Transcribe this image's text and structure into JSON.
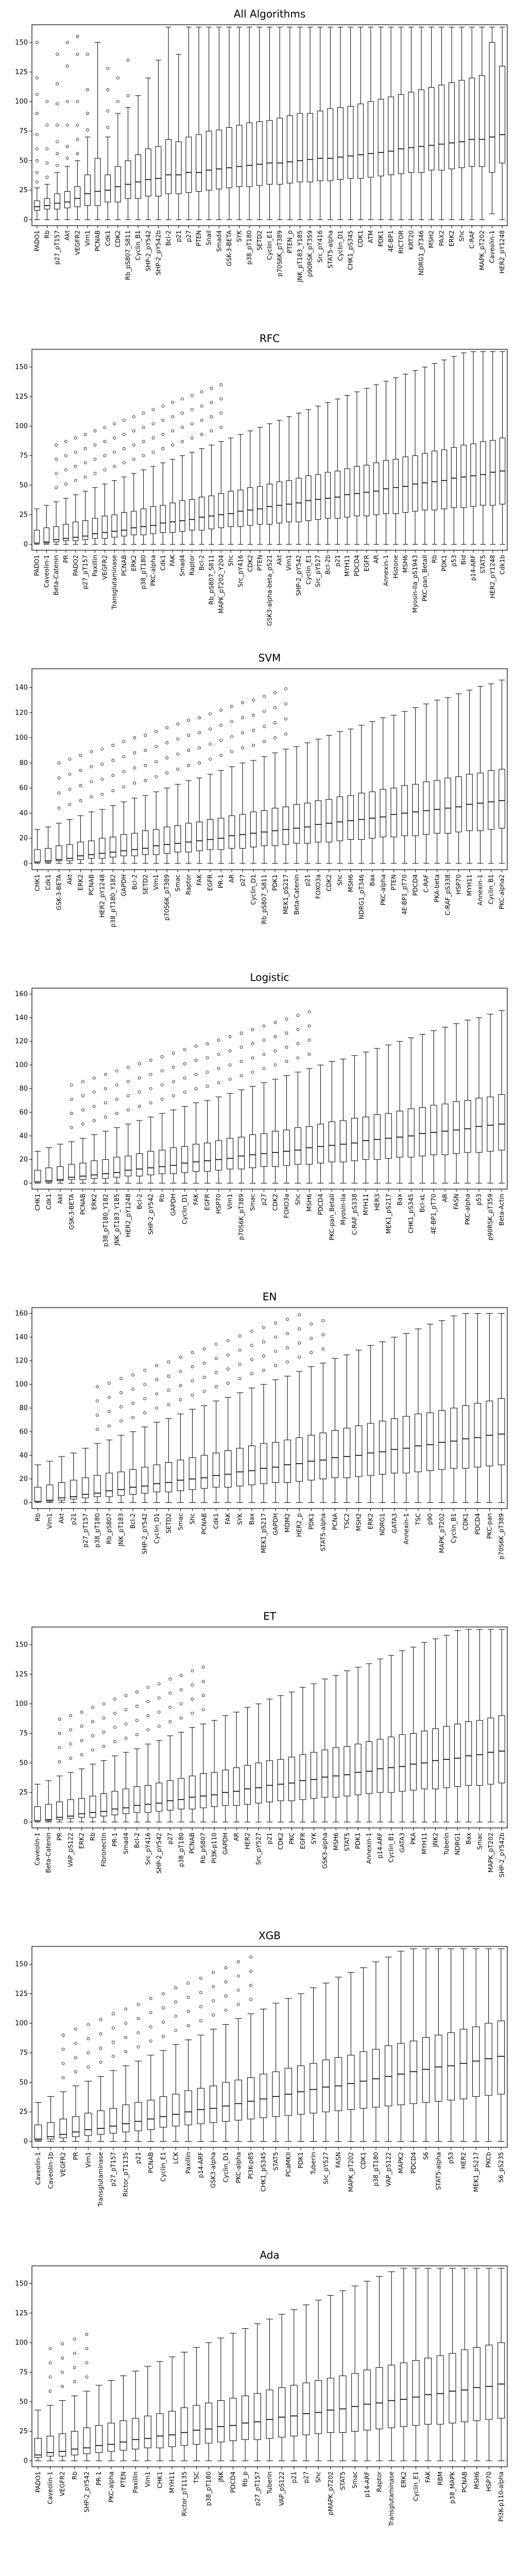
{
  "chart_data": [
    {
      "type": "box",
      "title": "All Algorithms",
      "ylim": [
        -5,
        165
      ],
      "yticks": [
        0,
        25,
        50,
        75,
        100,
        125,
        150
      ],
      "categories": [
        "PADO1",
        "Rb",
        "p27_pT157",
        "Akt",
        "VEGFR2",
        "Vim1",
        "PCNAB",
        "Cdk1",
        "CDK2",
        "Rb_pS807_S811",
        "Cyclin_B1",
        "SHP-2_pY542",
        "SHP-2_pY542b",
        "Bcl-2",
        "p21",
        "p27",
        "PTEN",
        "Snail",
        "Smad4",
        "GSK-3-BETA",
        "SYK",
        "p38_pT180",
        "SETD2",
        "Cyclin_E1",
        "p70S6K_pT389",
        "PTEN_p",
        "JNK_pT183_Y185",
        "p90RSK_pT359",
        "Src_pY416",
        "STAT5-alpha",
        "Cyclin_D1",
        "CHK1_pS345",
        "CDK1",
        "ATM",
        "PDK1",
        "4E-BP1",
        "RICTOR",
        "KRT20",
        "NDRG1_pT346",
        "MSH2",
        "PAX2",
        "ERK2",
        "Shc",
        "C-RAF",
        "MAPK_pT202",
        "Caveolin-1",
        "HER2_pY1248"
      ],
      "series": [
        {
          "q1": 8,
          "median": 11,
          "q3": 16,
          "wlow": 0,
          "whigh": 27,
          "outliers": [
            32,
            40,
            50,
            60,
            72,
            90,
            106,
            120,
            150
          ]
        },
        {
          "q1": 9,
          "median": 12,
          "q3": 18,
          "wlow": 0,
          "whigh": 30,
          "outliers": [
            36,
            48,
            60,
            80,
            100
          ]
        },
        {
          "q1": 9,
          "median": 14,
          "q3": 22,
          "wlow": 0,
          "whigh": 40,
          "outliers": [
            46,
            56,
            66,
            80,
            98,
            115,
            140
          ]
        },
        {
          "q1": 10,
          "median": 15,
          "q3": 24,
          "wlow": 0,
          "whigh": 45,
          "outliers": [
            52,
            62,
            80,
            100,
            130,
            150
          ]
        },
        {
          "q1": 11,
          "median": 18,
          "q3": 28,
          "wlow": 0,
          "whigh": 50,
          "outliers": [
            56,
            68,
            80,
            100,
            140,
            155
          ]
        },
        {
          "q1": 12,
          "median": 22,
          "q3": 38,
          "wlow": 0,
          "whigh": 70,
          "outliers": [
            76,
            90,
            110,
            140
          ]
        },
        {
          "q1": 12,
          "median": 24,
          "q3": 52,
          "wlow": 0,
          "whigh": 150,
          "outliers": []
        },
        {
          "q1": 15,
          "median": 25,
          "q3": 38,
          "wlow": 0,
          "whigh": 70,
          "outliers": [
            78,
            92,
            110,
            128
          ]
        },
        {
          "q1": 15,
          "median": 28,
          "q3": 45,
          "wlow": 0,
          "whigh": 90,
          "outliers": [
            100,
            120
          ]
        },
        {
          "q1": 18,
          "median": 30,
          "q3": 50,
          "wlow": 0,
          "whigh": 95,
          "outliers": [
            105,
            135
          ]
        },
        {
          "q1": 18,
          "median": 32,
          "q3": 55,
          "wlow": 0,
          "whigh": 105,
          "outliers": []
        },
        {
          "q1": 20,
          "median": 34,
          "q3": 60,
          "wlow": 0,
          "whigh": 120,
          "outliers": []
        },
        {
          "q1": 20,
          "median": 35,
          "q3": 62,
          "wlow": 0,
          "whigh": 135,
          "outliers": []
        },
        {
          "q1": 22,
          "median": 38,
          "q3": 68,
          "wlow": 0,
          "whigh": 163,
          "outliers": []
        },
        {
          "q1": 22,
          "median": 38,
          "q3": 66,
          "wlow": 0,
          "whigh": 140,
          "outliers": []
        },
        {
          "q1": 23,
          "median": 40,
          "q3": 70,
          "wlow": 0,
          "whigh": 163,
          "outliers": []
        },
        {
          "q1": 24,
          "median": 40,
          "q3": 72,
          "wlow": 0,
          "whigh": 163,
          "outliers": []
        },
        {
          "q1": 25,
          "median": 42,
          "q3": 75,
          "wlow": 0,
          "whigh": 163,
          "outliers": []
        },
        {
          "q1": 26,
          "median": 43,
          "q3": 76,
          "wlow": 0,
          "whigh": 163,
          "outliers": []
        },
        {
          "q1": 27,
          "median": 44,
          "q3": 78,
          "wlow": 0,
          "whigh": 163,
          "outliers": []
        },
        {
          "q1": 28,
          "median": 45,
          "q3": 80,
          "wlow": 0,
          "whigh": 163,
          "outliers": []
        },
        {
          "q1": 28,
          "median": 46,
          "q3": 82,
          "wlow": 0,
          "whigh": 163,
          "outliers": []
        },
        {
          "q1": 29,
          "median": 47,
          "q3": 83,
          "wlow": 0,
          "whigh": 163,
          "outliers": []
        },
        {
          "q1": 30,
          "median": 48,
          "q3": 84,
          "wlow": 0,
          "whigh": 163,
          "outliers": []
        },
        {
          "q1": 30,
          "median": 48,
          "q3": 86,
          "wlow": 0,
          "whigh": 163,
          "outliers": []
        },
        {
          "q1": 31,
          "median": 49,
          "q3": 88,
          "wlow": 0,
          "whigh": 163,
          "outliers": []
        },
        {
          "q1": 32,
          "median": 50,
          "q3": 90,
          "wlow": 0,
          "whigh": 163,
          "outliers": []
        },
        {
          "q1": 32,
          "median": 51,
          "q3": 90,
          "wlow": 0,
          "whigh": 163,
          "outliers": []
        },
        {
          "q1": 33,
          "median": 52,
          "q3": 92,
          "wlow": 0,
          "whigh": 163,
          "outliers": []
        },
        {
          "q1": 33,
          "median": 52,
          "q3": 94,
          "wlow": 0,
          "whigh": 163,
          "outliers": []
        },
        {
          "q1": 34,
          "median": 53,
          "q3": 95,
          "wlow": 0,
          "whigh": 163,
          "outliers": []
        },
        {
          "q1": 35,
          "median": 54,
          "q3": 96,
          "wlow": 0,
          "whigh": 163,
          "outliers": []
        },
        {
          "q1": 35,
          "median": 55,
          "q3": 98,
          "wlow": 0,
          "whigh": 163,
          "outliers": []
        },
        {
          "q1": 36,
          "median": 56,
          "q3": 100,
          "wlow": 0,
          "whigh": 163,
          "outliers": []
        },
        {
          "q1": 37,
          "median": 57,
          "q3": 102,
          "wlow": 0,
          "whigh": 163,
          "outliers": []
        },
        {
          "q1": 38,
          "median": 58,
          "q3": 104,
          "wlow": 0,
          "whigh": 163,
          "outliers": []
        },
        {
          "q1": 39,
          "median": 60,
          "q3": 106,
          "wlow": 0,
          "whigh": 163,
          "outliers": []
        },
        {
          "q1": 40,
          "median": 61,
          "q3": 108,
          "wlow": 0,
          "whigh": 163,
          "outliers": []
        },
        {
          "q1": 40,
          "median": 62,
          "q3": 110,
          "wlow": 0,
          "whigh": 163,
          "outliers": []
        },
        {
          "q1": 42,
          "median": 63,
          "q3": 112,
          "wlow": 0,
          "whigh": 163,
          "outliers": []
        },
        {
          "q1": 42,
          "median": 64,
          "q3": 114,
          "wlow": 0,
          "whigh": 163,
          "outliers": []
        },
        {
          "q1": 43,
          "median": 65,
          "q3": 116,
          "wlow": 0,
          "whigh": 163,
          "outliers": []
        },
        {
          "q1": 44,
          "median": 66,
          "q3": 118,
          "wlow": 0,
          "whigh": 163,
          "outliers": []
        },
        {
          "q1": 45,
          "median": 68,
          "q3": 120,
          "wlow": 0,
          "whigh": 163,
          "outliers": []
        },
        {
          "q1": 45,
          "median": 68,
          "q3": 122,
          "wlow": 0,
          "whigh": 163,
          "outliers": []
        },
        {
          "q1": 40,
          "median": 70,
          "q3": 150,
          "wlow": 5,
          "whigh": 163,
          "outliers": []
        },
        {
          "q1": 48,
          "median": 72,
          "q3": 130,
          "wlow": 0,
          "whigh": 163,
          "outliers": []
        }
      ]
    },
    {
      "type": "box",
      "title": "RFC",
      "ylim": [
        -5,
        165
      ],
      "yticks": [
        0,
        25,
        50,
        75,
        100,
        125,
        150
      ],
      "categories": [
        "PADO1",
        "Caveolin-1",
        "Beta-Catenin",
        "PR",
        "PADO2",
        "p27_pT157",
        "Paxillin",
        "VEGFR2",
        "Transglutaminase",
        "PCNAB",
        "ERK2",
        "p38_pT180",
        "PKC-alpha",
        "Cdk1",
        "FAK",
        "Smad4",
        "Raptor",
        "Bcl-2",
        "Rb_pS807_S811",
        "MAPK_pT202_Y204",
        "Shc",
        "Src_pY416",
        "CDK2",
        "PTEN",
        "GSK3-alpha-beta_pS21",
        "Akt",
        "Vim1",
        "SHP-2_pY542",
        "Cyclin_E1",
        "Src_pY527",
        "Bcl-2b",
        "p21",
        "MYH11",
        "PDCD4",
        "EGFR",
        "AR",
        "Annexin-1",
        "Histone",
        "MSH6",
        "Myosin-IIa_pS1943",
        "PKC-pan_BetaII",
        "Rb",
        "PDK1",
        "p53",
        "Bid",
        "p14-ARF",
        "STAT5",
        "HER2_pY1248",
        "Cdk1b"
      ],
      "series": "auto-rfc"
    }
  ]
}
